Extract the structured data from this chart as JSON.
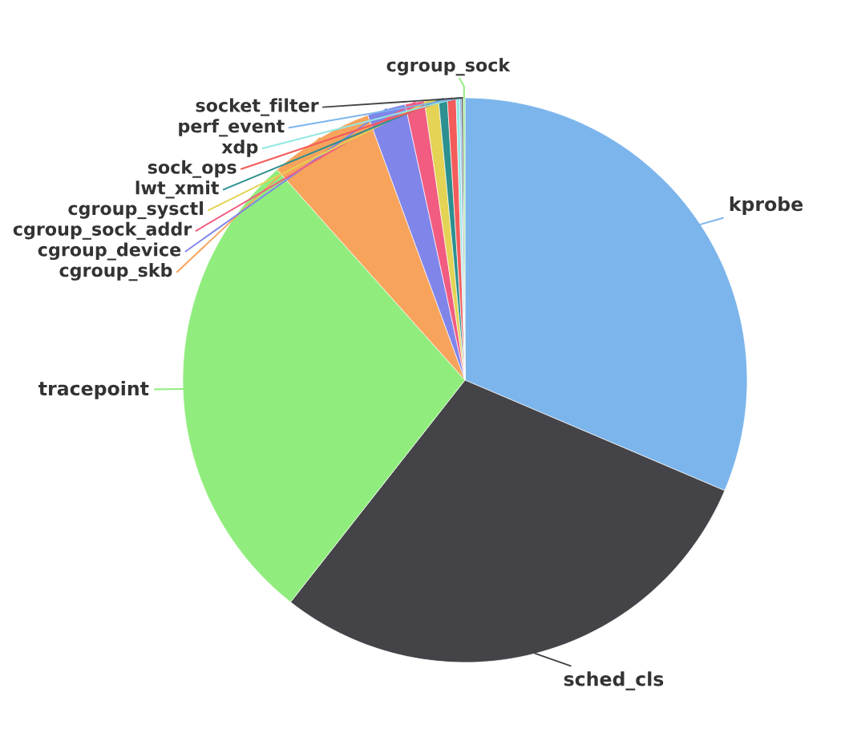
{
  "chart_data": {
    "type": "pie",
    "categories": [
      "kprobe",
      "sched_cls",
      "tracepoint",
      "cgroup_skb",
      "cgroup_device",
      "cgroup_sock_addr",
      "cgroup_sysctl",
      "lwt_xmit",
      "sock_ops",
      "xdp",
      "perf_event",
      "socket_filter",
      "cgroup_sock"
    ],
    "values": [
      31.4,
      29.2,
      27.8,
      6.0,
      2.2,
      1.1,
      0.8,
      0.5,
      0.5,
      0.2,
      0.1,
      0.1,
      0.1
    ],
    "colors": [
      "#7cb5ec",
      "#434348",
      "#90ed7d",
      "#f7a35c",
      "#8085e9",
      "#f15c80",
      "#e4d354",
      "#2b908f",
      "#f45b5b",
      "#91e8e1",
      "#7cb5ec",
      "#434348",
      "#90ed7d"
    ]
  }
}
